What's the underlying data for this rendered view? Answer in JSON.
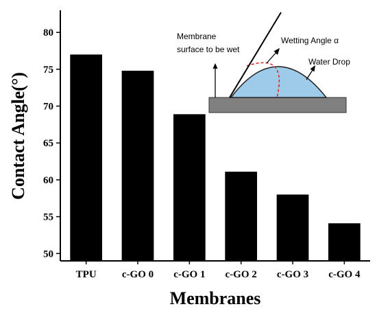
{
  "chart_data": {
    "type": "bar",
    "categories": [
      "TPU",
      "c-GO 0",
      "c-GO 1",
      "c-GO 2",
      "c-GO 3",
      "c-GO 4"
    ],
    "values": [
      77.0,
      74.8,
      68.9,
      61.1,
      58.0,
      54.1
    ],
    "xlabel": "Membranes",
    "ylabel": "Contact Angle(°)",
    "ylim": [
      49,
      83
    ],
    "yticks": [
      50,
      55,
      60,
      65,
      70,
      75,
      80
    ],
    "bar_color": "#000000",
    "grid": false,
    "legend": "none"
  },
  "inset": {
    "membrane_label_line1": "Membrane",
    "membrane_label_line2": "surface to be wet",
    "wetting_angle_label": "Wetting Angle α",
    "water_drop_label": "Water Drop",
    "drop_color": "#9fcbea",
    "surface_color": "#808080",
    "angle_arc_color": "#e02020"
  }
}
